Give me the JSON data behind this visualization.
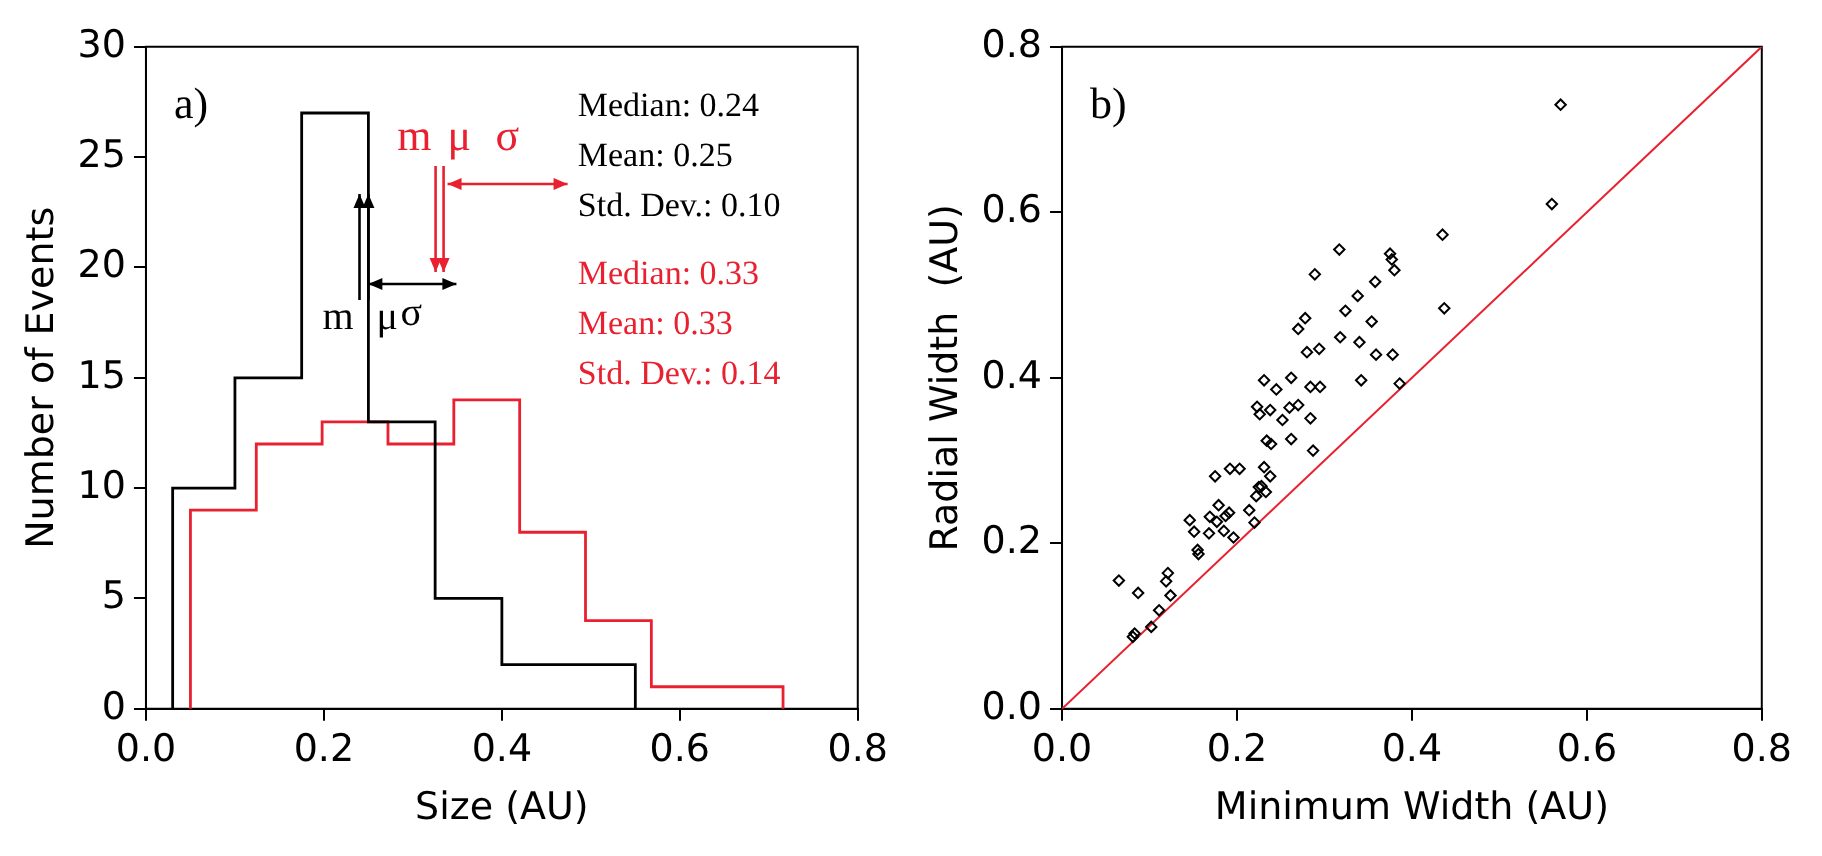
{
  "chart_data": [
    {
      "type": "step",
      "xlabel": "Size (AU)",
      "ylabel": "Number of Events",
      "xlim": [
        0,
        0.8
      ],
      "ylim": [
        0,
        30
      ],
      "xticks": [
        {
          "value": 0,
          "label": "0.0"
        },
        {
          "value": 0.2,
          "label": "0.2"
        },
        {
          "value": 0.4,
          "label": "0.4"
        },
        {
          "value": 0.6,
          "label": "0.6"
        },
        {
          "value": 0.8,
          "label": "0.8"
        }
      ],
      "yticks": [
        0,
        5,
        10,
        15,
        20,
        25,
        30
      ],
      "grid": false,
      "legend": false,
      "series": [
        {
          "color": "#000000",
          "x": [
            0.03,
            0.03,
            0.1,
            0.175,
            0.25,
            0.325,
            0.4,
            0.475,
            0.55
          ],
          "values": [
            0,
            10,
            15,
            27,
            13,
            5,
            2,
            2,
            0
          ]
        },
        {
          "color": "#e8202f",
          "x": [
            0.05,
            0.05,
            0.124,
            0.198,
            0.272,
            0.346,
            0.42,
            0.494,
            0.568,
            0.642,
            0.716
          ],
          "values": [
            0,
            9,
            12,
            13,
            12,
            14,
            8,
            4,
            1,
            1,
            0
          ]
        }
      ],
      "annotations": [
        "a)",
        "Median: 0.24",
        "Mean: 0.25",
        "Std. Dev.: 0.10",
        "Median: 0.33",
        "Mean: 0.33",
        "Std. Dev.: 0.14",
        {
          "text": "m",
          "x": 0.24
        },
        {
          "text": "μ",
          "x": 0.25
        },
        "σ",
        {
          "text": "m",
          "x": 0.33
        },
        {
          "text": "μ",
          "x": 0.33
        },
        "σ"
      ]
    },
    {
      "type": "scatter",
      "xlabel": "Minimum Width (AU)",
      "ylabel": "Radial Width  (AU)",
      "xlim": [
        0,
        0.8
      ],
      "ylim": [
        0,
        0.8
      ],
      "xticks": [
        {
          "value": 0,
          "label": "0.0"
        },
        {
          "value": 0.2,
          "label": "0.2"
        },
        {
          "value": 0.4,
          "label": "0.4"
        },
        {
          "value": 0.6,
          "label": "0.6"
        },
        {
          "value": 0.8,
          "label": "0.8"
        }
      ],
      "yticks": [
        {
          "value": 0,
          "label": "0.0"
        },
        {
          "value": 0.2,
          "label": "0.2"
        },
        {
          "value": 0.4,
          "label": "0.4"
        },
        {
          "value": 0.6,
          "label": "0.6"
        },
        {
          "value": 0.8,
          "label": "0.8"
        }
      ],
      "grid": false,
      "legend": false,
      "marker": "diamond",
      "annotations": [
        "b)"
      ],
      "series": [
        {
          "type": "scatter",
          "color": "#000000",
          "x": [
            0.065,
            0.087,
            0.083,
            0.081,
            0.102,
            0.111,
            0.119,
            0.121,
            0.124,
            0.146,
            0.151,
            0.155,
            0.156,
            0.168,
            0.169,
            0.175,
            0.179,
            0.177,
            0.185,
            0.187,
            0.191,
            0.192,
            0.196,
            0.203,
            0.214,
            0.22,
            0.222,
            0.225,
            0.228,
            0.231,
            0.233,
            0.238,
            0.223,
            0.226,
            0.231,
            0.238,
            0.234,
            0.239,
            0.245,
            0.252,
            0.26,
            0.262,
            0.262,
            0.27,
            0.27,
            0.278,
            0.28,
            0.284,
            0.284,
            0.287,
            0.289,
            0.294,
            0.295,
            0.317,
            0.318,
            0.324,
            0.338,
            0.34,
            0.342,
            0.354,
            0.358,
            0.359,
            0.375,
            0.377,
            0.38,
            0.378,
            0.386,
            0.435,
            0.437,
            0.56,
            0.57
          ],
          "values": [
            0.155,
            0.14,
            0.091,
            0.087,
            0.099,
            0.119,
            0.154,
            0.164,
            0.137,
            0.228,
            0.214,
            0.192,
            0.187,
            0.212,
            0.232,
            0.281,
            0.246,
            0.226,
            0.215,
            0.233,
            0.237,
            0.29,
            0.207,
            0.29,
            0.24,
            0.225,
            0.257,
            0.268,
            0.269,
            0.292,
            0.262,
            0.281,
            0.365,
            0.356,
            0.397,
            0.361,
            0.324,
            0.32,
            0.386,
            0.349,
            0.364,
            0.4,
            0.326,
            0.367,
            0.459,
            0.472,
            0.431,
            0.389,
            0.351,
            0.312,
            0.525,
            0.435,
            0.389,
            0.555,
            0.449,
            0.481,
            0.499,
            0.443,
            0.397,
            0.468,
            0.516,
            0.428,
            0.55,
            0.543,
            0.53,
            0.428,
            0.393,
            0.573,
            0.484,
            0.61,
            0.73
          ]
        },
        {
          "type": "line",
          "color": "#e8202f",
          "x": [
            0,
            0.8
          ],
          "values": [
            0,
            0.8
          ],
          "marker": "none"
        }
      ]
    }
  ]
}
